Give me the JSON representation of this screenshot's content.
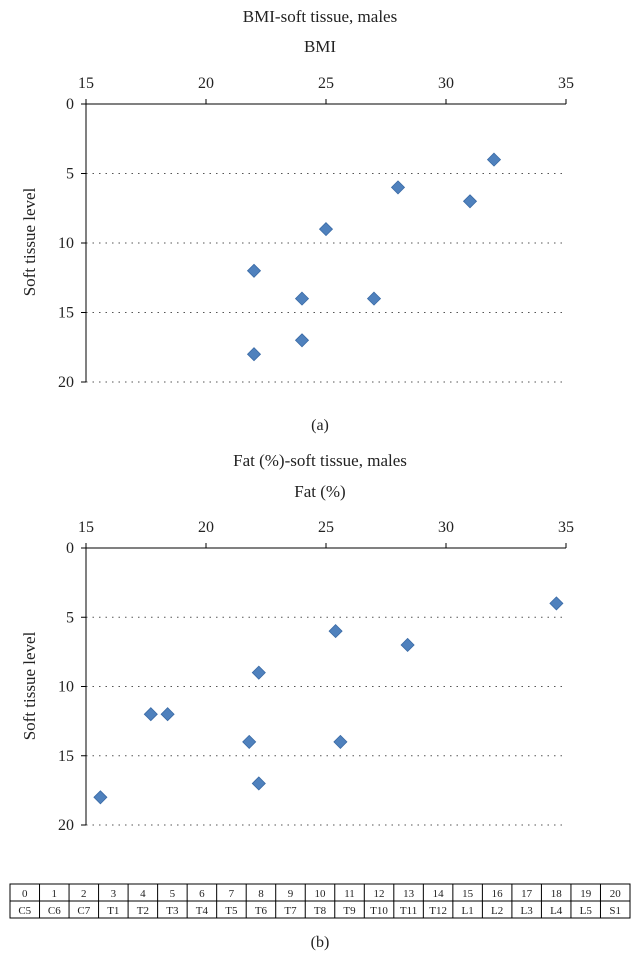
{
  "colors": {
    "marker": "#4F81BD",
    "marker_edge": "#3A6AA5",
    "axis": "#000000",
    "grid": "#555555"
  },
  "chart_data": [
    {
      "type": "scatter",
      "title": "BMI-soft tissue, males",
      "xlabel": "BMI",
      "ylabel": "Soft tissue level",
      "xlim": [
        15,
        35
      ],
      "ylim": [
        0,
        20
      ],
      "x_ticks": [
        15,
        20,
        25,
        30,
        35
      ],
      "y_ticks": [
        0,
        5,
        10,
        15,
        20
      ],
      "y_inverted": true,
      "x_axis_position": "top",
      "grid": "horizontal dotted",
      "caption": "(a)",
      "points": [
        {
          "x": 22,
          "y": 12
        },
        {
          "x": 22,
          "y": 18
        },
        {
          "x": 24,
          "y": 14
        },
        {
          "x": 24,
          "y": 17
        },
        {
          "x": 25,
          "y": 9
        },
        {
          "x": 27,
          "y": 14
        },
        {
          "x": 28,
          "y": 6
        },
        {
          "x": 31,
          "y": 7
        },
        {
          "x": 32,
          "y": 4
        }
      ]
    },
    {
      "type": "scatter",
      "title": "Fat (%)-soft tissue, males",
      "xlabel": "Fat (%)",
      "ylabel": "Soft tissue level",
      "xlim": [
        15,
        35
      ],
      "ylim": [
        0,
        20
      ],
      "x_ticks": [
        15,
        20,
        25,
        30,
        35
      ],
      "y_ticks": [
        0,
        5,
        10,
        15,
        20
      ],
      "y_inverted": true,
      "x_axis_position": "top",
      "grid": "horizontal dotted",
      "caption": "(b)",
      "points": [
        {
          "x": 15.6,
          "y": 18
        },
        {
          "x": 17.7,
          "y": 12
        },
        {
          "x": 18.4,
          "y": 12
        },
        {
          "x": 21.8,
          "y": 14
        },
        {
          "x": 22.2,
          "y": 9
        },
        {
          "x": 22.2,
          "y": 17
        },
        {
          "x": 25.4,
          "y": 6
        },
        {
          "x": 25.6,
          "y": 14
        },
        {
          "x": 28.4,
          "y": 7
        },
        {
          "x": 34.6,
          "y": 4
        }
      ]
    }
  ],
  "level_table": {
    "numbers": [
      "0",
      "1",
      "2",
      "3",
      "4",
      "5",
      "6",
      "7",
      "8",
      "9",
      "10",
      "11",
      "12",
      "13",
      "14",
      "15",
      "16",
      "17",
      "18",
      "19",
      "20"
    ],
    "levels": [
      "C5",
      "C6",
      "C7",
      "T1",
      "T2",
      "T3",
      "T4",
      "T5",
      "T6",
      "T7",
      "T8",
      "T9",
      "T10",
      "T11",
      "T12",
      "L1",
      "L2",
      "L3",
      "L4",
      "L5",
      "S1"
    ]
  }
}
